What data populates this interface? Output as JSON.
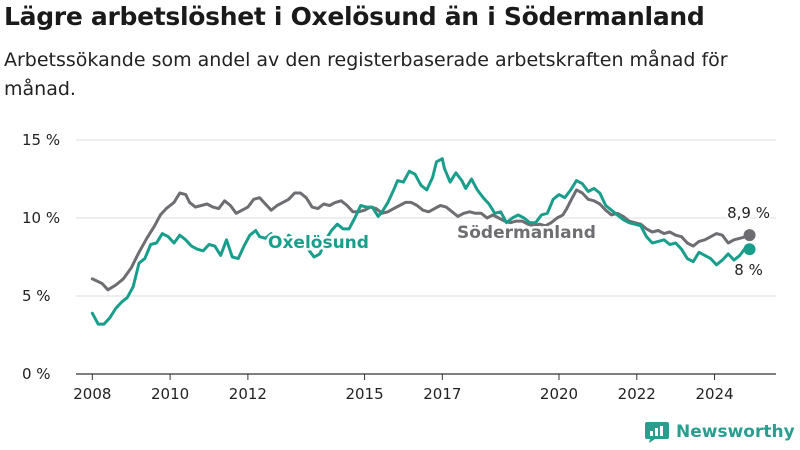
{
  "title": "Lägre arbetslöshet i Oxelösund än i Södermanland",
  "subtitle": "Arbetssökande som andel av den registerbaserade arbetskraften månad för månad.",
  "brand": "Newsworthy",
  "colors": {
    "oxelosund": "#1a9e8c",
    "sodermanland": "#6e6e72",
    "grid": "#dddddd",
    "axis": "#333333",
    "brand": "#2a9d8f"
  },
  "chart_data": {
    "type": "line",
    "y_ticks": [
      {
        "value": 0,
        "label": "0 %"
      },
      {
        "value": 5,
        "label": "5 %"
      },
      {
        "value": 10,
        "label": "10 %"
      },
      {
        "value": 15,
        "label": "15 %"
      }
    ],
    "x_ticks": [
      {
        "value": 2008,
        "label": "2008"
      },
      {
        "value": 2010,
        "label": "2010"
      },
      {
        "value": 2012,
        "label": "2012"
      },
      {
        "value": 2015,
        "label": "2015"
      },
      {
        "value": 2017,
        "label": "2017"
      },
      {
        "value": 2020,
        "label": "2020"
      },
      {
        "value": 2022,
        "label": "2022"
      },
      {
        "value": 2024,
        "label": "2024"
      }
    ],
    "xlim": [
      2007.58,
      2025.58
    ],
    "ylim": [
      0,
      15
    ],
    "grid": true,
    "series": [
      {
        "name": "Södermanland",
        "key": "sodermanland",
        "end_label": "8,9 %",
        "points": [
          [
            2008.0,
            6.1
          ],
          [
            2008.25,
            5.8
          ],
          [
            2008.4,
            5.4
          ],
          [
            2008.6,
            5.7
          ],
          [
            2008.8,
            6.1
          ],
          [
            2009.0,
            6.8
          ],
          [
            2009.2,
            7.8
          ],
          [
            2009.4,
            8.7
          ],
          [
            2009.6,
            9.5
          ],
          [
            2009.75,
            10.2
          ],
          [
            2009.9,
            10.6
          ],
          [
            2010.1,
            11.0
          ],
          [
            2010.25,
            11.6
          ],
          [
            2010.4,
            11.5
          ],
          [
            2010.5,
            11.0
          ],
          [
            2010.65,
            10.7
          ],
          [
            2010.8,
            10.8
          ],
          [
            2010.95,
            10.9
          ],
          [
            2011.1,
            10.7
          ],
          [
            2011.25,
            10.6
          ],
          [
            2011.4,
            11.1
          ],
          [
            2011.55,
            10.8
          ],
          [
            2011.7,
            10.3
          ],
          [
            2011.85,
            10.5
          ],
          [
            2012.0,
            10.7
          ],
          [
            2012.15,
            11.2
          ],
          [
            2012.3,
            11.3
          ],
          [
            2012.45,
            10.9
          ],
          [
            2012.6,
            10.5
          ],
          [
            2012.75,
            10.8
          ],
          [
            2012.9,
            11.0
          ],
          [
            2013.05,
            11.2
          ],
          [
            2013.2,
            11.6
          ],
          [
            2013.35,
            11.6
          ],
          [
            2013.5,
            11.3
          ],
          [
            2013.65,
            10.7
          ],
          [
            2013.8,
            10.6
          ],
          [
            2013.95,
            10.9
          ],
          [
            2014.1,
            10.8
          ],
          [
            2014.25,
            11.0
          ],
          [
            2014.4,
            11.1
          ],
          [
            2014.55,
            10.8
          ],
          [
            2014.7,
            10.4
          ],
          [
            2014.85,
            10.4
          ],
          [
            2015.0,
            10.5
          ],
          [
            2015.15,
            10.7
          ],
          [
            2015.3,
            10.6
          ],
          [
            2015.45,
            10.3
          ],
          [
            2015.6,
            10.4
          ],
          [
            2015.75,
            10.6
          ],
          [
            2015.9,
            10.8
          ],
          [
            2016.05,
            11.0
          ],
          [
            2016.2,
            11.0
          ],
          [
            2016.35,
            10.8
          ],
          [
            2016.5,
            10.5
          ],
          [
            2016.65,
            10.4
          ],
          [
            2016.8,
            10.6
          ],
          [
            2016.95,
            10.8
          ],
          [
            2017.1,
            10.7
          ],
          [
            2017.25,
            10.4
          ],
          [
            2017.4,
            10.1
          ],
          [
            2017.55,
            10.3
          ],
          [
            2017.7,
            10.4
          ],
          [
            2017.85,
            10.3
          ],
          [
            2018.0,
            10.3
          ],
          [
            2018.15,
            10.0
          ],
          [
            2018.3,
            10.2
          ],
          [
            2018.45,
            10.0
          ],
          [
            2018.6,
            9.8
          ],
          [
            2018.75,
            9.7
          ],
          [
            2018.9,
            9.8
          ],
          [
            2019.05,
            9.8
          ],
          [
            2019.2,
            9.6
          ],
          [
            2019.35,
            9.5
          ],
          [
            2019.5,
            9.6
          ],
          [
            2019.65,
            9.5
          ],
          [
            2019.8,
            9.7
          ],
          [
            2019.95,
            10.0
          ],
          [
            2020.1,
            10.2
          ],
          [
            2020.2,
            10.6
          ],
          [
            2020.3,
            11.1
          ],
          [
            2020.45,
            11.8
          ],
          [
            2020.6,
            11.6
          ],
          [
            2020.75,
            11.2
          ],
          [
            2020.9,
            11.1
          ],
          [
            2021.05,
            10.9
          ],
          [
            2021.2,
            10.5
          ],
          [
            2021.35,
            10.2
          ],
          [
            2021.5,
            10.3
          ],
          [
            2021.65,
            10.1
          ],
          [
            2021.8,
            9.8
          ],
          [
            2021.95,
            9.7
          ],
          [
            2022.1,
            9.6
          ],
          [
            2022.25,
            9.3
          ],
          [
            2022.4,
            9.1
          ],
          [
            2022.55,
            9.2
          ],
          [
            2022.7,
            9.0
          ],
          [
            2022.85,
            9.1
          ],
          [
            2023.0,
            8.9
          ],
          [
            2023.15,
            8.8
          ],
          [
            2023.3,
            8.4
          ],
          [
            2023.45,
            8.2
          ],
          [
            2023.6,
            8.5
          ],
          [
            2023.75,
            8.6
          ],
          [
            2023.9,
            8.8
          ],
          [
            2024.05,
            9.0
          ],
          [
            2024.2,
            8.9
          ],
          [
            2024.35,
            8.4
          ],
          [
            2024.5,
            8.6
          ],
          [
            2024.65,
            8.7
          ],
          [
            2024.8,
            8.8
          ],
          [
            2024.9,
            8.9
          ]
        ]
      },
      {
        "name": "Oxelösund",
        "key": "oxelosund",
        "end_label": "8 %",
        "points": [
          [
            2008.0,
            3.9
          ],
          [
            2008.15,
            3.2
          ],
          [
            2008.3,
            3.2
          ],
          [
            2008.45,
            3.6
          ],
          [
            2008.6,
            4.2
          ],
          [
            2008.75,
            4.6
          ],
          [
            2008.9,
            4.9
          ],
          [
            2009.05,
            5.6
          ],
          [
            2009.2,
            7.1
          ],
          [
            2009.35,
            7.4
          ],
          [
            2009.5,
            8.3
          ],
          [
            2009.65,
            8.4
          ],
          [
            2009.8,
            9.0
          ],
          [
            2009.95,
            8.8
          ],
          [
            2010.1,
            8.4
          ],
          [
            2010.25,
            8.9
          ],
          [
            2010.4,
            8.6
          ],
          [
            2010.55,
            8.2
          ],
          [
            2010.7,
            8.0
          ],
          [
            2010.85,
            7.9
          ],
          [
            2011.0,
            8.3
          ],
          [
            2011.15,
            8.2
          ],
          [
            2011.3,
            7.6
          ],
          [
            2011.45,
            8.6
          ],
          [
            2011.6,
            7.5
          ],
          [
            2011.75,
            7.4
          ],
          [
            2011.9,
            8.2
          ],
          [
            2012.05,
            8.9
          ],
          [
            2012.2,
            9.2
          ],
          [
            2012.3,
            8.8
          ],
          [
            2012.45,
            8.7
          ],
          [
            2012.6,
            9.0
          ],
          [
            2012.75,
            8.6
          ],
          [
            2012.9,
            8.2
          ],
          [
            2013.05,
            8.9
          ],
          [
            2013.2,
            8.6
          ],
          [
            2013.4,
            8.7
          ],
          [
            2013.55,
            8.0
          ],
          [
            2013.7,
            7.5
          ],
          [
            2013.85,
            7.7
          ],
          [
            2014.0,
            8.6
          ],
          [
            2014.15,
            9.2
          ],
          [
            2014.3,
            9.6
          ],
          [
            2014.45,
            9.3
          ],
          [
            2014.6,
            9.3
          ],
          [
            2014.75,
            10.0
          ],
          [
            2014.9,
            10.8
          ],
          [
            2015.05,
            10.7
          ],
          [
            2015.2,
            10.7
          ],
          [
            2015.35,
            10.1
          ],
          [
            2015.45,
            10.4
          ],
          [
            2015.6,
            11.0
          ],
          [
            2015.75,
            11.8
          ],
          [
            2015.85,
            12.4
          ],
          [
            2016.0,
            12.3
          ],
          [
            2016.15,
            13.0
          ],
          [
            2016.3,
            12.8
          ],
          [
            2016.45,
            12.1
          ],
          [
            2016.6,
            11.8
          ],
          [
            2016.75,
            12.6
          ],
          [
            2016.85,
            13.6
          ],
          [
            2017.0,
            13.8
          ],
          [
            2017.05,
            13.2
          ],
          [
            2017.2,
            12.3
          ],
          [
            2017.35,
            12.9
          ],
          [
            2017.5,
            12.4
          ],
          [
            2017.6,
            11.9
          ],
          [
            2017.75,
            12.5
          ],
          [
            2017.9,
            11.8
          ],
          [
            2018.05,
            11.3
          ],
          [
            2018.2,
            10.9
          ],
          [
            2018.35,
            10.3
          ],
          [
            2018.5,
            10.4
          ],
          [
            2018.65,
            9.7
          ],
          [
            2018.8,
            10.0
          ],
          [
            2018.95,
            10.2
          ],
          [
            2019.1,
            10.0
          ],
          [
            2019.25,
            9.7
          ],
          [
            2019.4,
            9.7
          ],
          [
            2019.55,
            10.2
          ],
          [
            2019.7,
            10.3
          ],
          [
            2019.85,
            11.2
          ],
          [
            2020.0,
            11.5
          ],
          [
            2020.15,
            11.3
          ],
          [
            2020.3,
            11.8
          ],
          [
            2020.45,
            12.4
          ],
          [
            2020.6,
            12.2
          ],
          [
            2020.75,
            11.7
          ],
          [
            2020.9,
            11.9
          ],
          [
            2021.05,
            11.6
          ],
          [
            2021.2,
            10.8
          ],
          [
            2021.35,
            10.5
          ],
          [
            2021.5,
            10.2
          ],
          [
            2021.65,
            9.9
          ],
          [
            2021.8,
            9.7
          ],
          [
            2021.95,
            9.6
          ],
          [
            2022.1,
            9.5
          ],
          [
            2022.25,
            8.8
          ],
          [
            2022.4,
            8.4
          ],
          [
            2022.55,
            8.5
          ],
          [
            2022.7,
            8.6
          ],
          [
            2022.85,
            8.3
          ],
          [
            2023.0,
            8.4
          ],
          [
            2023.15,
            8.0
          ],
          [
            2023.3,
            7.4
          ],
          [
            2023.45,
            7.2
          ],
          [
            2023.6,
            7.8
          ],
          [
            2023.75,
            7.6
          ],
          [
            2023.9,
            7.4
          ],
          [
            2024.05,
            7.0
          ],
          [
            2024.2,
            7.3
          ],
          [
            2024.35,
            7.7
          ],
          [
            2024.5,
            7.3
          ],
          [
            2024.65,
            7.6
          ],
          [
            2024.8,
            8.1
          ],
          [
            2024.9,
            8.0
          ]
        ]
      }
    ]
  }
}
